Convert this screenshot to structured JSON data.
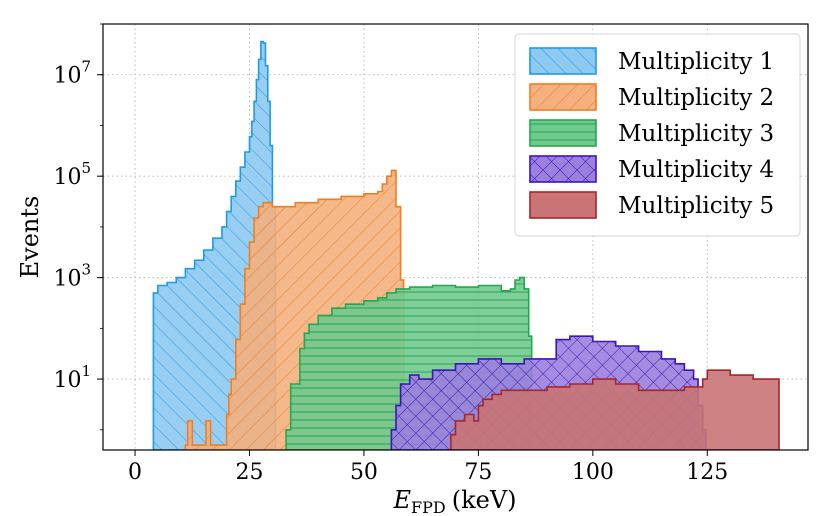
{
  "chart_data": {
    "type": "area",
    "title": "",
    "xlabel": "E_FPD (keV)",
    "xlabel_main": "E",
    "xlabel_sub": "FPD",
    "xlabel_unit": "(keV)",
    "ylabel": "Events",
    "y_scale": "log",
    "xlim": [
      -7,
      147
    ],
    "ylim": [
      0.4,
      100000000
    ],
    "x_ticks": [
      0,
      25,
      50,
      75,
      100,
      125
    ],
    "x_tick_labels": [
      "0",
      "25",
      "50",
      "75",
      "100",
      "125"
    ],
    "y_ticks": [
      10,
      1000,
      100000,
      10000000
    ],
    "y_tick_labels": [
      {
        "base": "10",
        "exp": "1"
      },
      {
        "base": "10",
        "exp": "3"
      },
      {
        "base": "10",
        "exp": "5"
      },
      {
        "base": "10",
        "exp": "7"
      }
    ],
    "grid": true,
    "legend_position": "top-right",
    "series": [
      {
        "name": "Multiplicity 1",
        "color": "#1f9be6",
        "fill": "#8ec9f2",
        "hatch": "forward-diagonal",
        "x": [
          4,
          5,
          7,
          9,
          11,
          13,
          15,
          17,
          19,
          20,
          21,
          22,
          23,
          24,
          25,
          25.5,
          26,
          26.5,
          27,
          27.5,
          28,
          28.5,
          29,
          29.5,
          30
        ],
        "y": [
          500,
          700,
          800,
          1000,
          1500,
          2200,
          3500,
          6000,
          10000,
          20000,
          40000,
          80000,
          150000,
          300000,
          600000,
          1200000,
          3000000,
          8000000,
          20000000,
          45000000,
          42000000,
          15000000,
          3000000,
          400000,
          25000
        ]
      },
      {
        "name": "Multiplicity 2",
        "color": "#f07f22",
        "fill": "#f4b07e",
        "hatch": "back-diagonal",
        "x": [
          11,
          11.5,
          12,
          12.5,
          13,
          15,
          15.5,
          16,
          16.5,
          19.5,
          20,
          20.5,
          21,
          22,
          23,
          24,
          25,
          26,
          27,
          28,
          30,
          35,
          40,
          45,
          50,
          53,
          54,
          55,
          56,
          57,
          58
        ],
        "y": [
          0.5,
          1.5,
          1.5,
          0.5,
          0.5,
          0.5,
          1.5,
          1.5,
          0.5,
          0.5,
          2,
          5,
          10,
          60,
          300,
          1500,
          5000,
          15000,
          25000,
          30000,
          25000,
          30000,
          35000,
          40000,
          45000,
          50000,
          70000,
          100000,
          130000,
          25000,
          900
        ]
      },
      {
        "name": "Multiplicity 3",
        "color": "#22a84e",
        "fill": "#72c98f",
        "hatch": "horizontal",
        "x": [
          33,
          34,
          36,
          37,
          38,
          40,
          43,
          46,
          50,
          53,
          55,
          57,
          60,
          65,
          70,
          75,
          80,
          82,
          83,
          84,
          85,
          86
        ],
        "y": [
          1,
          8,
          40,
          80,
          120,
          180,
          250,
          300,
          350,
          400,
          500,
          600,
          650,
          700,
          650,
          700,
          550,
          600,
          900,
          1000,
          600,
          70
        ]
      },
      {
        "name": "Multiplicity 4",
        "color": "#3b16b8",
        "fill": "#9b80de",
        "hatch": "cross",
        "x": [
          56,
          57,
          58,
          60,
          62,
          65,
          70,
          75,
          80,
          85,
          90,
          92,
          95,
          100,
          105,
          110,
          115,
          118,
          120,
          122,
          123,
          124
        ],
        "y": [
          1,
          3,
          8,
          12,
          10,
          15,
          20,
          25,
          20,
          25,
          25,
          60,
          70,
          55,
          45,
          35,
          25,
          20,
          15,
          10,
          3,
          1
        ]
      },
      {
        "name": "Multiplicity 5",
        "color": "#a8262a",
        "fill": "#c97475",
        "hatch": "none",
        "x": [
          69,
          70,
          72,
          74,
          75,
          76,
          78,
          80,
          85,
          90,
          95,
          100,
          105,
          110,
          115,
          120,
          124,
          125,
          128,
          130,
          135,
          138,
          140
        ],
        "y": [
          0.8,
          1.5,
          2,
          1.5,
          3,
          4,
          5,
          6,
          6,
          7,
          8,
          10,
          8,
          6,
          6,
          7,
          10,
          15,
          15,
          12,
          10,
          10,
          10
        ]
      }
    ]
  }
}
